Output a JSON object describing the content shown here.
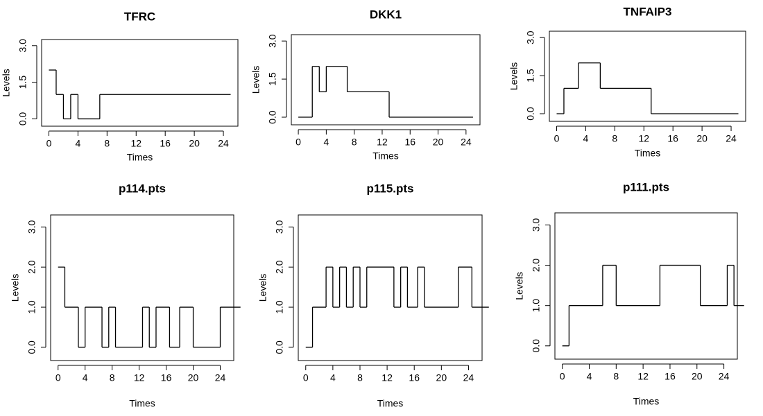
{
  "chart_data": [
    {
      "type": "line",
      "step": "post",
      "title": "TFRC",
      "x_label": "Times",
      "y_label": "Levels",
      "x": [
        0,
        1,
        2,
        3,
        4,
        7,
        25
      ],
      "series": [
        {
          "color": "#000000",
          "values": [
            2,
            1,
            0,
            1,
            0,
            1,
            1
          ]
        }
      ],
      "xlim": [
        -1,
        26
      ],
      "xticks": [
        0,
        4,
        8,
        12,
        16,
        20,
        24
      ],
      "ylim": [
        -0.3,
        3.25
      ],
      "yticks": [
        {
          "value": 0,
          "label": "0.0"
        },
        1.5,
        {
          "value": 3,
          "label": "3.0"
        }
      ]
    },
    {
      "type": "line",
      "step": "post",
      "title": "DKK1",
      "x_label": "Times",
      "y_label": "Levels",
      "x": [
        0,
        2,
        3,
        4,
        7,
        13,
        25
      ],
      "series": [
        {
          "color": "#000000",
          "values": [
            0,
            2,
            1,
            2,
            1,
            0,
            0
          ]
        }
      ],
      "xlim": [
        -1,
        26
      ],
      "xticks": [
        0,
        4,
        8,
        12,
        16,
        20,
        24
      ],
      "ylim": [
        -0.3,
        3.25
      ],
      "yticks": [
        {
          "value": 0,
          "label": "0.0"
        },
        1.5,
        {
          "value": 3,
          "label": "3.0"
        }
      ]
    },
    {
      "type": "line",
      "step": "post",
      "title": "TNFAIP3",
      "x_label": "Times",
      "y_label": "Levels",
      "x": [
        0,
        1,
        3,
        6,
        13,
        25
      ],
      "series": [
        {
          "color": "#000000",
          "values": [
            0,
            1,
            2,
            1,
            0,
            0
          ]
        }
      ],
      "xlim": [
        -1,
        26
      ],
      "xticks": [
        0,
        4,
        8,
        12,
        16,
        20,
        24
      ],
      "ylim": [
        -0.3,
        3.25
      ],
      "yticks": [
        {
          "value": 0,
          "label": "0.0"
        },
        1.5,
        {
          "value": 3,
          "label": "3.0"
        }
      ]
    },
    {
      "type": "line",
      "step": "post",
      "title": "p114.pts",
      "x_label": "Times",
      "y_label": "Levels",
      "x": [
        0,
        1,
        3,
        4,
        6.5,
        7.5,
        8.5,
        12.5,
        13.5,
        14.5,
        16.5,
        18,
        20,
        24,
        27
      ],
      "series": [
        {
          "color": "#000000",
          "values": [
            2,
            1,
            0,
            1,
            0,
            1,
            0,
            1,
            0,
            1,
            0,
            1,
            0,
            1,
            1
          ]
        }
      ],
      "xlim": [
        -1.1,
        26
      ],
      "xticks": [
        0,
        4,
        8,
        12,
        16,
        20,
        24
      ],
      "ylim": [
        -0.33,
        3.3
      ],
      "yticks": [
        {
          "value": 0,
          "label": "0.0"
        },
        {
          "value": 1,
          "label": "1.0"
        },
        {
          "value": 2,
          "label": "2.0"
        },
        {
          "value": 3,
          "label": "3.0"
        }
      ]
    },
    {
      "type": "line",
      "step": "post",
      "title": "p115.pts",
      "x_label": "Times",
      "y_label": "Levels",
      "x": [
        0,
        1,
        3,
        4,
        5,
        6,
        7,
        8,
        9,
        13,
        14,
        15,
        16.5,
        17.5,
        22.5,
        24.5,
        27
      ],
      "series": [
        {
          "color": "#000000",
          "values": [
            0,
            1,
            2,
            1,
            2,
            1,
            2,
            1,
            2,
            1,
            2,
            1,
            2,
            1,
            2,
            1,
            1
          ]
        }
      ],
      "xlim": [
        -1.1,
        26
      ],
      "xticks": [
        0,
        4,
        8,
        12,
        16,
        20,
        24
      ],
      "ylim": [
        -0.33,
        3.3
      ],
      "yticks": [
        {
          "value": 0,
          "label": "0.0"
        },
        {
          "value": 1,
          "label": "1.0"
        },
        {
          "value": 2,
          "label": "2.0"
        },
        {
          "value": 3,
          "label": "3.0"
        }
      ]
    },
    {
      "type": "line",
      "step": "post",
      "title": "p111.pts",
      "x_label": "Times",
      "y_label": "Levels",
      "x": [
        0,
        1,
        6,
        8,
        14.5,
        20.5,
        24.5,
        25.5,
        27
      ],
      "series": [
        {
          "color": "#000000",
          "values": [
            0,
            1,
            2,
            1,
            2,
            1,
            2,
            1,
            1
          ]
        }
      ],
      "xlim": [
        -1.1,
        26
      ],
      "xticks": [
        0,
        4,
        8,
        12,
        16,
        20,
        24
      ],
      "ylim": [
        -0.33,
        3.3
      ],
      "yticks": [
        {
          "value": 0,
          "label": "0.0"
        },
        {
          "value": 1,
          "label": "1.0"
        },
        {
          "value": 2,
          "label": "2.0"
        },
        {
          "value": 3,
          "label": "3.0"
        }
      ]
    }
  ]
}
